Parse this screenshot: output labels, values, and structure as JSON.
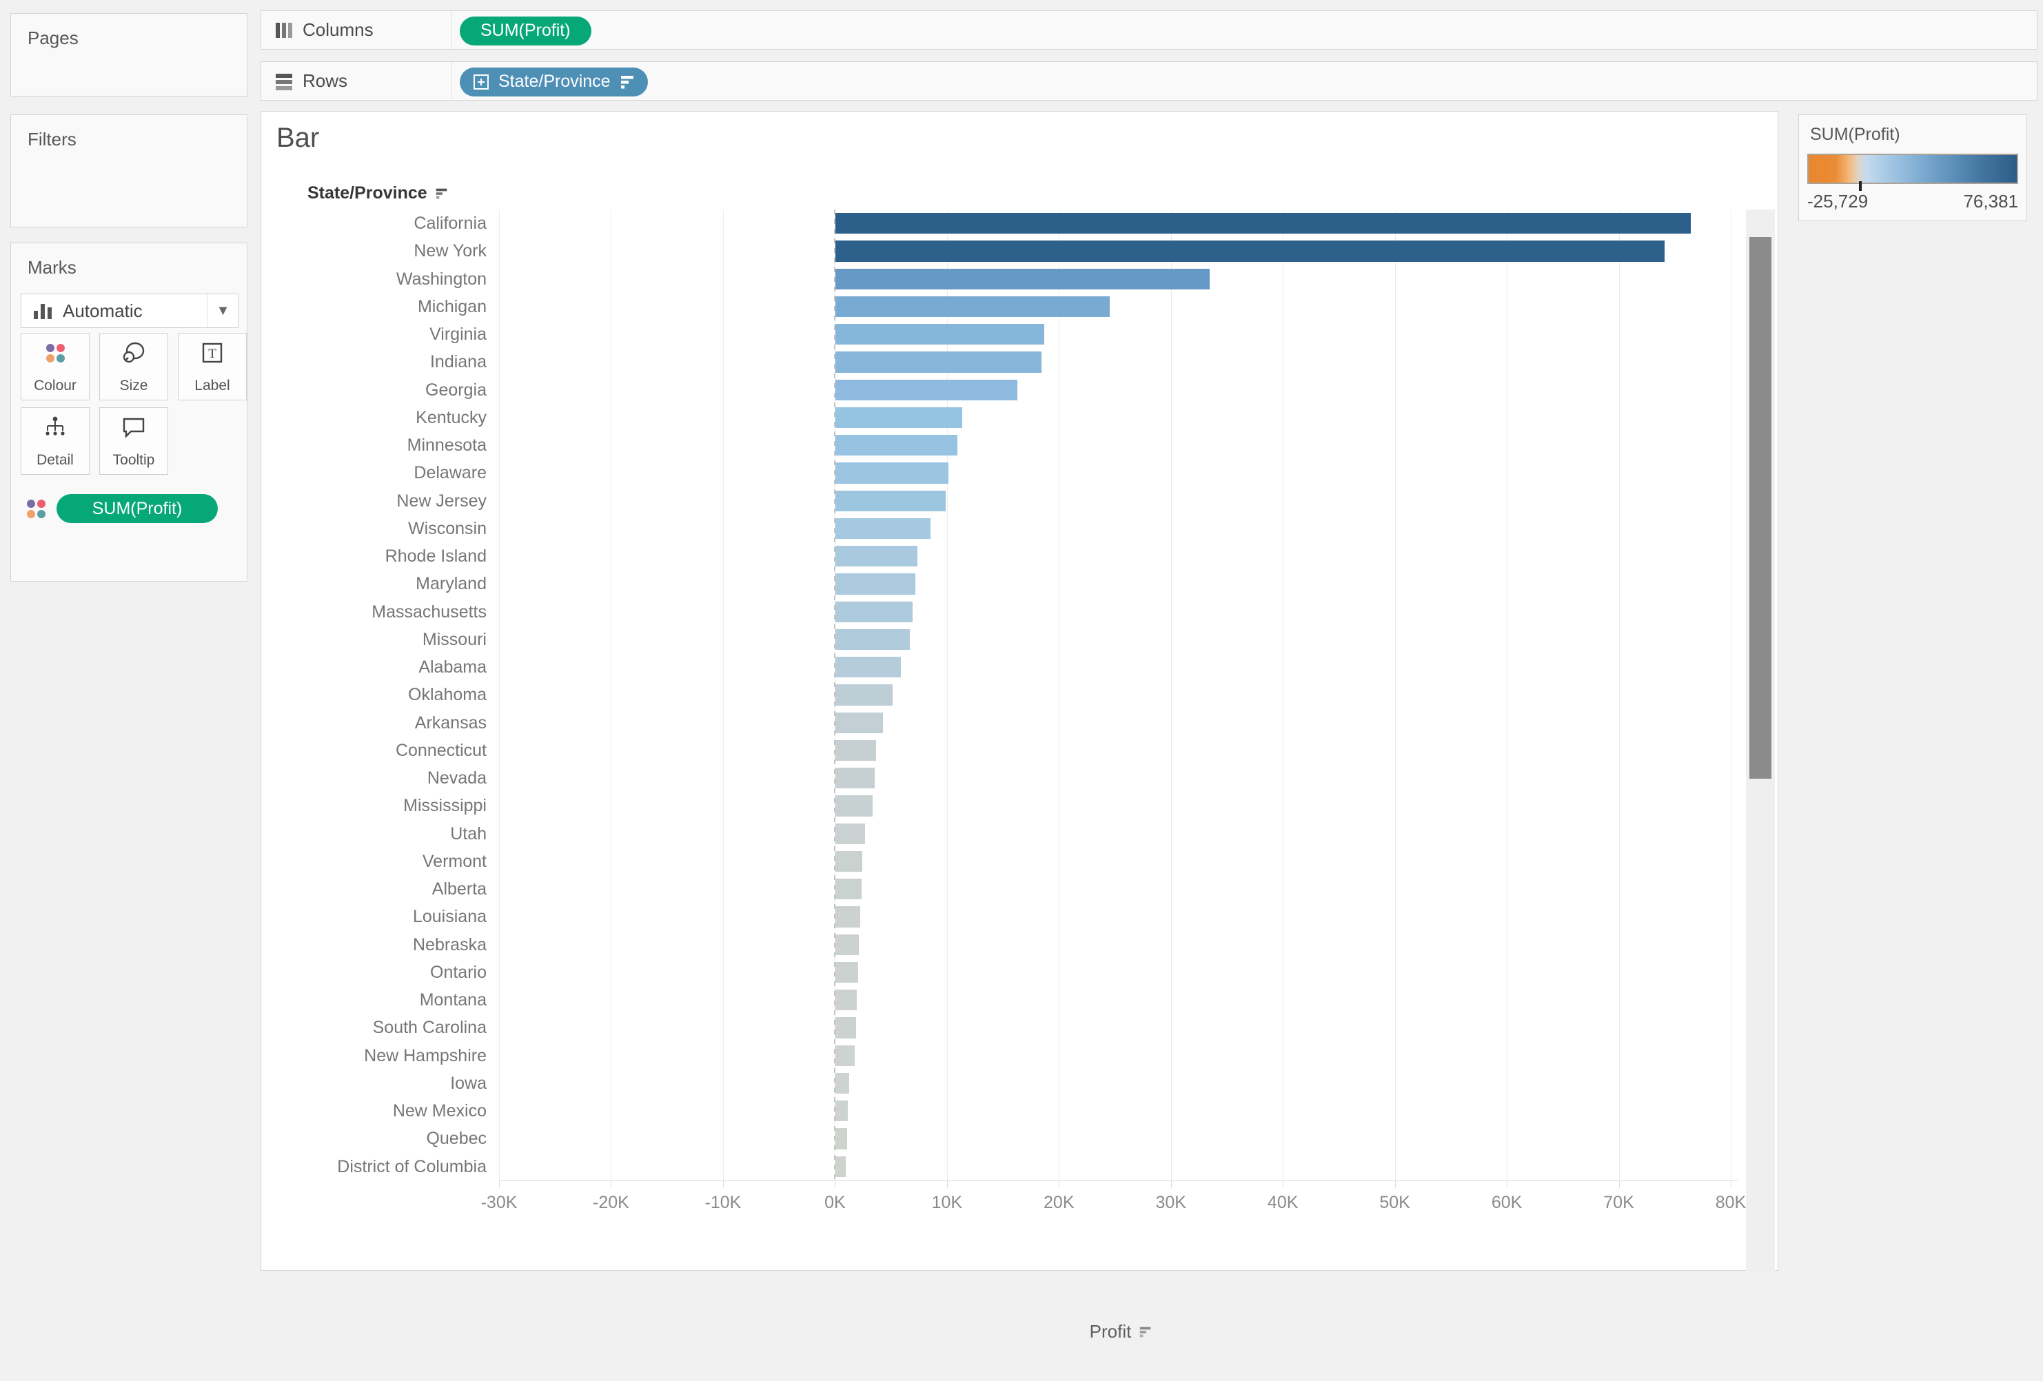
{
  "shelves": {
    "columns": {
      "label": "Columns",
      "pill": {
        "text": "SUM(Profit)",
        "color": "#07a878"
      }
    },
    "rows": {
      "label": "Rows",
      "pill": {
        "text": "State/Province",
        "color": "#4e8fb5"
      }
    }
  },
  "panels": {
    "pages": {
      "title": "Pages"
    },
    "filters": {
      "title": "Filters"
    },
    "marks": {
      "title": "Marks",
      "mark_type": "Automatic",
      "buttons": [
        {
          "label": "Colour",
          "icon": "colour-dots-icon"
        },
        {
          "label": "Size",
          "icon": "size-icon"
        },
        {
          "label": "Label",
          "icon": "label-icon"
        },
        {
          "label": "Detail",
          "icon": "detail-icon"
        },
        {
          "label": "Tooltip",
          "icon": "tooltip-icon"
        }
      ],
      "colour_dots": [
        "#7c6ba5",
        "#ed5f6e",
        "#f0a169",
        "#5b9ea3"
      ],
      "encoding_pill": {
        "text": "SUM(Profit)",
        "color": "#07a878"
      }
    }
  },
  "sheet": {
    "title": "Bar",
    "row_header": "State/Province"
  },
  "legend": {
    "title": "SUM(Profit)",
    "min_label": "-25,729",
    "max_label": "76,381",
    "zero_tick_pct": 24.5,
    "gradient_stops": [
      [
        "#e8872f",
        0
      ],
      [
        "#ea8c36",
        13
      ],
      [
        "#f4bc83",
        20
      ],
      [
        "#ddd6c9",
        24
      ],
      [
        "#c4daee",
        28
      ],
      [
        "#a5c8e4",
        38
      ],
      [
        "#82afd4",
        52
      ],
      [
        "#5f92bd",
        68
      ],
      [
        "#42749f",
        84
      ],
      [
        "#2c5d89",
        100
      ]
    ]
  },
  "chart_data": {
    "type": "bar",
    "orientation": "horizontal",
    "title": "Bar",
    "xlabel": "Profit",
    "ylabel": "State/Province",
    "sort": "descending",
    "grid": true,
    "xlim": [
      -30000,
      80000
    ],
    "xticks": [
      "-30K",
      "-20K",
      "-10K",
      "0K",
      "10K",
      "20K",
      "30K",
      "40K",
      "50K",
      "60K",
      "70K",
      "80K"
    ],
    "xtick_values": [
      -30000,
      -20000,
      -10000,
      0,
      10000,
      20000,
      30000,
      40000,
      50000,
      60000,
      70000,
      80000
    ],
    "color_scale": {
      "min": -25729,
      "max": 76381,
      "palette": "orange-blue diverging"
    },
    "categories": [
      "California",
      "New York",
      "Washington",
      "Michigan",
      "Virginia",
      "Indiana",
      "Georgia",
      "Kentucky",
      "Minnesota",
      "Delaware",
      "New Jersey",
      "Wisconsin",
      "Rhode Island",
      "Maryland",
      "Massachusetts",
      "Missouri",
      "Alabama",
      "Oklahoma",
      "Arkansas",
      "Connecticut",
      "Nevada",
      "Mississippi",
      "Utah",
      "Vermont",
      "Alberta",
      "Louisiana",
      "Nebraska",
      "Ontario",
      "Montana",
      "South Carolina",
      "New Hampshire",
      "Iowa",
      "New Mexico",
      "Quebec",
      "District of Columbia"
    ],
    "values": [
      76381,
      74000,
      33400,
      24500,
      18600,
      18400,
      16200,
      11300,
      10900,
      10100,
      9800,
      8500,
      7300,
      7100,
      6900,
      6600,
      5800,
      5100,
      4200,
      3600,
      3500,
      3300,
      2600,
      2400,
      2300,
      2200,
      2100,
      2000,
      1900,
      1800,
      1700,
      1200,
      1100,
      1000,
      900
    ],
    "bar_colors": [
      "#2d5f8b",
      "#2e608c",
      "#6699c5",
      "#79abd2",
      "#86b6da",
      "#87b6da",
      "#8dbade",
      "#95c3e2",
      "#96c3e1",
      "#9bc5e1",
      "#9cc5e0",
      "#a4c9e0",
      "#a9cade",
      "#abcade",
      "#adcbdd",
      "#afcbdc",
      "#b5ccda",
      "#bdced7",
      "#c2cfd5",
      "#c6d0d3",
      "#c6d0d2",
      "#c7d1d2",
      "#c9d1d1",
      "#cad2d0",
      "#cad2d0",
      "#cbd2d0",
      "#cbd2cf",
      "#ccd2cf",
      "#ccd3cf",
      "#ccd3cf",
      "#cdd3cf",
      "#cdd3ce",
      "#cdd3ce",
      "#ced3ce",
      "#ced3ce"
    ]
  }
}
